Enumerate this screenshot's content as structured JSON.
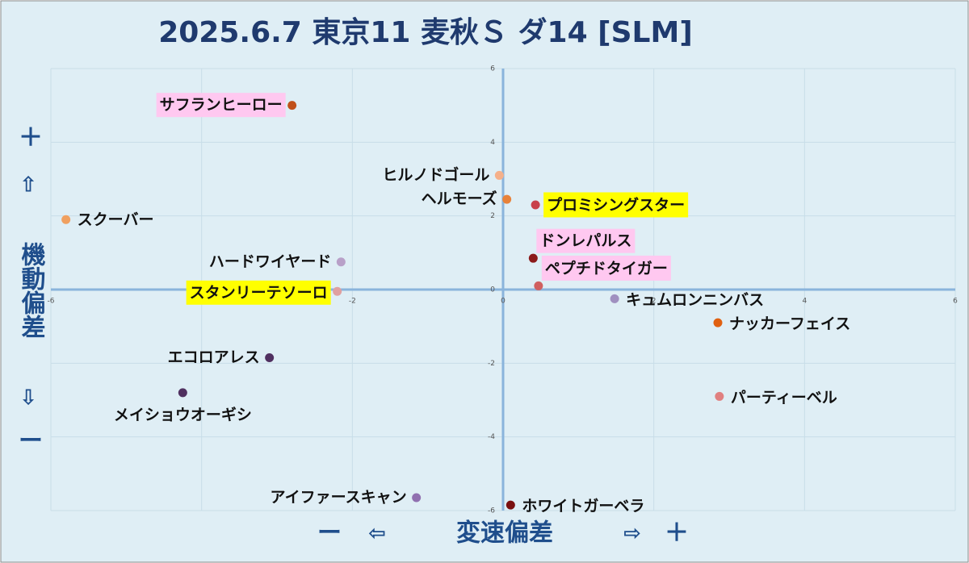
{
  "chart_data": {
    "type": "scatter",
    "title": "2025.6.7 東京11 麦秋Ｓ ダ14 [SLM]",
    "xlabel": "変速偏差",
    "ylabel": "機動偏差",
    "x_minus": "ー",
    "x_left_arrow": "⇦",
    "x_right_arrow": "⇨",
    "x_plus": "＋",
    "y_plus": "＋",
    "y_up_arrow": "⇧",
    "y_down_arrow": "⇩",
    "y_minus": "ー",
    "xlim": [
      -6,
      6
    ],
    "ylim": [
      -6,
      6
    ],
    "xticks": [
      -6,
      -4,
      -2,
      0,
      2,
      4,
      6
    ],
    "yticks": [
      -6,
      -4,
      -2,
      0,
      2,
      4,
      6
    ],
    "grid": true,
    "points": [
      {
        "name": "サフランヒーロー",
        "x": -2.8,
        "y": 5.0,
        "color": "#c0501a",
        "highlight": "#ffc8f0"
      },
      {
        "name": "ヒルノドゴール",
        "x": -0.05,
        "y": 3.1,
        "color": "#f5b08a"
      },
      {
        "name": "ヘルモーズ",
        "x": 0.05,
        "y": 2.45,
        "color": "#e8823a"
      },
      {
        "name": "プロミシングスター",
        "x": 0.43,
        "y": 2.3,
        "color": "#c8404a",
        "highlight": "#ffff00"
      },
      {
        "name": "スクーバー",
        "x": -5.8,
        "y": 1.9,
        "color": "#f0a060"
      },
      {
        "name": "ドンレパルス",
        "x": 0.4,
        "y": 0.85,
        "color": "#8b1a1a",
        "highlight": "#ffc8f0"
      },
      {
        "name": "ハードワイヤード",
        "x": -2.15,
        "y": 0.75,
        "color": "#b8a0c8"
      },
      {
        "name": "ペプチドタイガー",
        "x": 0.47,
        "y": 0.1,
        "color": "#d06060",
        "highlight": "#ffc8f0"
      },
      {
        "name": "スタンリーテソーロ",
        "x": -2.2,
        "y": -0.05,
        "color": "#e0a0a0",
        "highlight": "#ffff00"
      },
      {
        "name": "キュムロンニンバス",
        "x": 1.48,
        "y": -0.25,
        "color": "#a090c0"
      },
      {
        "name": "ナッカーフェイス",
        "x": 2.85,
        "y": -0.9,
        "color": "#e06010"
      },
      {
        "name": "エコロアレス",
        "x": -3.1,
        "y": -1.85,
        "color": "#503060"
      },
      {
        "name": "パーティーベル",
        "x": 2.87,
        "y": -2.9,
        "color": "#e08080"
      },
      {
        "name": "メイショウオーギシ",
        "x": -4.25,
        "y": -2.8,
        "color": "#503060"
      },
      {
        "name": "アイファースキャン",
        "x": -1.15,
        "y": -5.65,
        "color": "#9070b0"
      },
      {
        "name": "ホワイトガーベラ",
        "x": 0.1,
        "y": -5.85,
        "color": "#7a1010"
      }
    ]
  }
}
